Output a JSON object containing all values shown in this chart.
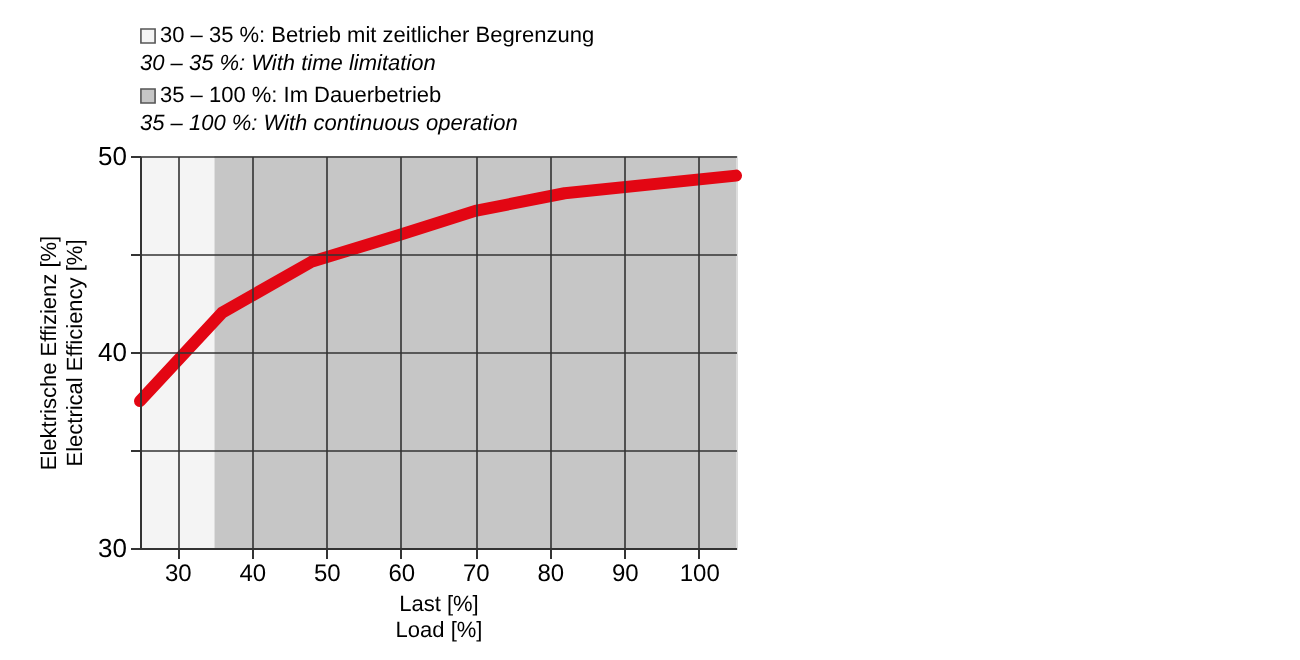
{
  "chart_data": {
    "type": "line",
    "xlabel": "Last [%]\nLoad [%]",
    "ylabel": "Elektrische Effizienz [%]\nElectrical Efficiency [%]",
    "x": [
      25,
      36,
      48,
      60,
      70,
      82,
      105
    ],
    "series": [
      {
        "color": "#e30613",
        "values": [
          37.5,
          42,
          44.6,
          46,
          47.2,
          48.1,
          49
        ]
      }
    ],
    "xlim": [
      25,
      105
    ],
    "xticks": [
      30,
      40,
      50,
      60,
      70,
      80,
      90,
      100
    ],
    "ylim": [
      30,
      50
    ],
    "yticks": [
      30,
      40,
      50,
      {
        "value": 35,
        "label": null
      },
      {
        "value": 45,
        "label": null
      }
    ],
    "grid": true,
    "legend": "top left",
    "line_style": "solid",
    "marker": "none",
    "bands": [
      {
        "axis": "x",
        "from": 25,
        "to": 35,
        "color": "#f4f4f4",
        "label": "30 – 35 %: Betrieb mit zeitlicher Begrenzung\n30 – 35 %: With time limitation"
      },
      {
        "axis": "x",
        "from": 35,
        "to": 105,
        "color": "#c6c6c6",
        "label": "35 – 100 %: Im Dauerbetrieb\n35 – 100 %: With continuous operation"
      }
    ]
  }
}
